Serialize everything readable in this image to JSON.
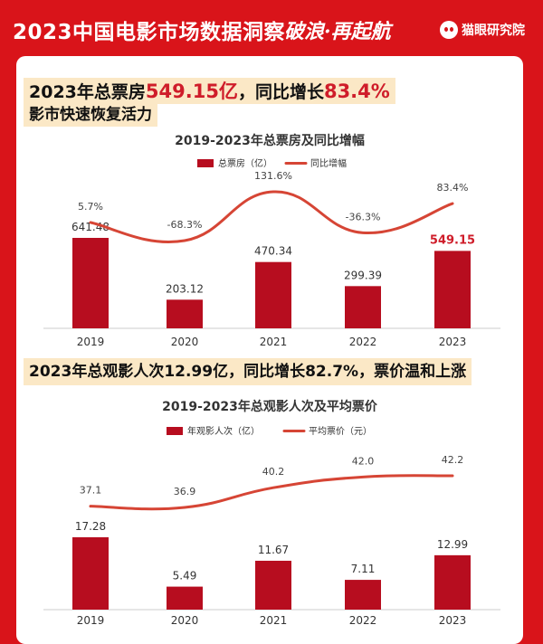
{
  "header": {
    "title": "2023中国电影市场数据洞察",
    "slogan": "破浪·再起航",
    "brand": "猫眼研究院",
    "brand_icon": "cat-eye-logo-icon"
  },
  "section1": {
    "headline_parts": [
      "2023年总票房",
      "549.15亿",
      "，同比增长",
      "83.4%"
    ],
    "subheadline": "影市快速恢复活力"
  },
  "section2": {
    "headline": "2023年总观影人次12.99亿，同比增长82.7%，票价温和上涨"
  },
  "colors": {
    "page_bg": "#d9141a",
    "bar": "#b70d1f",
    "line": "#d64535",
    "highlight_text": "#cf1d2a",
    "headline_bg": "#fbe8c6"
  },
  "chart_data": [
    {
      "type": "bar",
      "title": "2019-2023年总票房及同比增幅",
      "categories": [
        "2019",
        "2020",
        "2021",
        "2022",
        "2023"
      ],
      "series": [
        {
          "name": "总票房（亿）",
          "type": "bar",
          "values": [
            641.48,
            203.12,
            470.34,
            299.39,
            549.15
          ],
          "labels": [
            "641.48",
            "203.12",
            "470.34",
            "299.39",
            "549.15"
          ],
          "highlight_index": 4
        },
        {
          "name": "同比增幅",
          "type": "line",
          "values": [
            5.7,
            -68.3,
            131.6,
            -36.3,
            83.4
          ],
          "labels": [
            "5.7%",
            "-68.3%",
            "131.6%",
            "-36.3%",
            "83.4%"
          ]
        }
      ],
      "legend": "top-center",
      "grid": false
    },
    {
      "type": "bar",
      "title": "2019-2023年总观影人次及平均票价",
      "categories": [
        "2019",
        "2020",
        "2021",
        "2022",
        "2023"
      ],
      "series": [
        {
          "name": "年观影人次（亿）",
          "type": "bar",
          "values": [
            17.28,
            5.49,
            11.67,
            7.11,
            12.99
          ],
          "labels": [
            "17.28",
            "5.49",
            "11.67",
            "7.11",
            "12.99"
          ]
        },
        {
          "name": "平均票价（元）",
          "type": "line",
          "values": [
            37.1,
            36.9,
            40.2,
            42.0,
            42.2
          ],
          "labels": [
            "37.1",
            "36.9",
            "40.2",
            "42.0",
            "42.2"
          ]
        }
      ],
      "legend": "top-center",
      "grid": false
    }
  ]
}
